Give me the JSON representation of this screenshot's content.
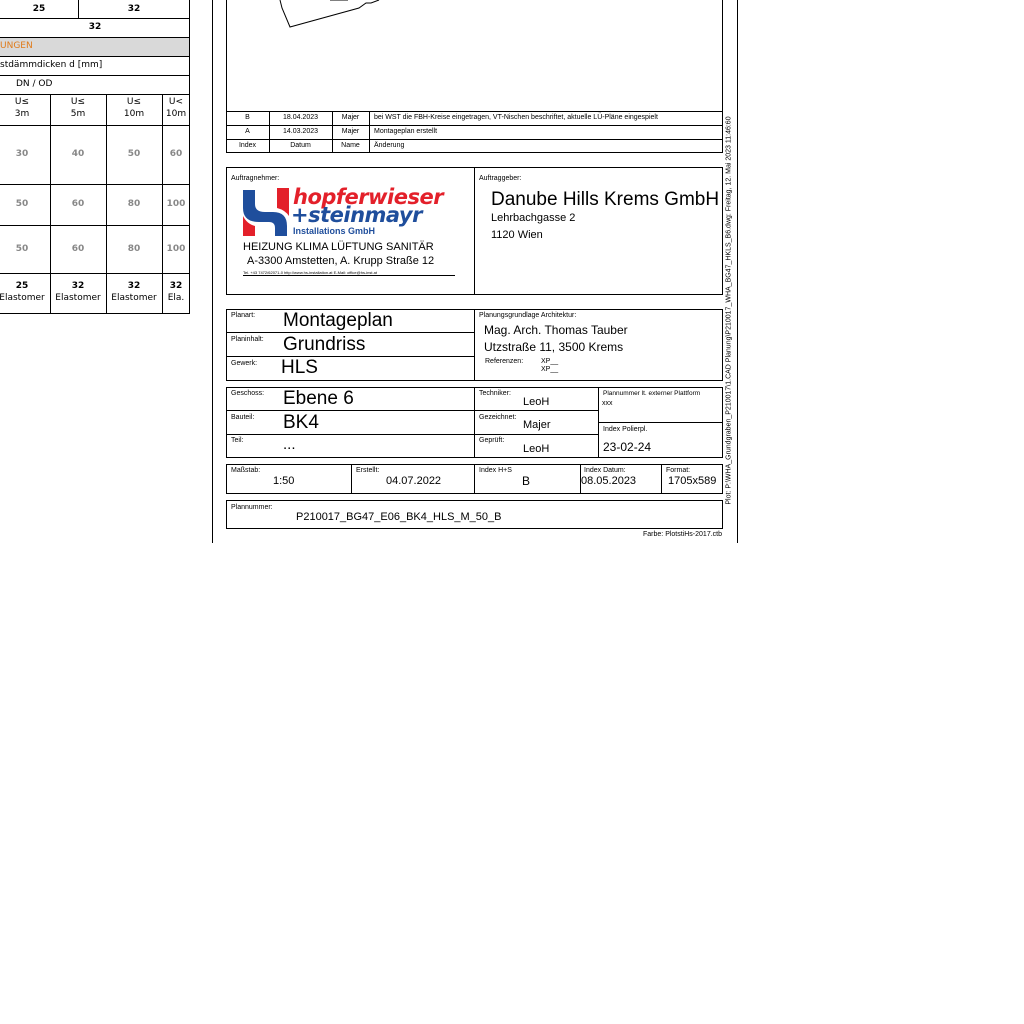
{
  "left_table": {
    "top_row": [
      "25",
      "32"
    ],
    "row2": "32",
    "section_header": "UNGEN",
    "section_color": "#e07b1a",
    "thickness_label": "stdämmdicken d [mm]",
    "dn_label": "DN / OD",
    "columns": [
      {
        "l1": "U≤",
        "l2": "3m"
      },
      {
        "l1": "U≤",
        "l2": "5m"
      },
      {
        "l1": "U≤",
        "l2": "10m"
      },
      {
        "l1": "U<",
        "l2": "10m"
      }
    ],
    "rows": [
      [
        "30",
        "40",
        "50",
        "60"
      ],
      [
        "50",
        "60",
        "80",
        "100"
      ],
      [
        "50",
        "60",
        "80",
        "100"
      ]
    ],
    "footer": [
      {
        "v": "25",
        "m": "Elastomer"
      },
      {
        "v": "32",
        "m": "Elastomer"
      },
      {
        "v": "32",
        "m": "Elastomer"
      },
      {
        "v": "32",
        "m": "Ela."
      }
    ]
  },
  "revisions": {
    "rows": [
      {
        "index": "B",
        "date": "18.04.2023",
        "name": "Majer",
        "change": "bei WST die FBH-Kreise eingetragen, VT-Nischen beschriftet, aktuelle LÜ-Pläne eingespielt"
      },
      {
        "index": "A",
        "date": "14.03.2023",
        "name": "Majer",
        "change": "Montageplan erstellt"
      }
    ],
    "header": {
      "index": "Index",
      "date": "Datum",
      "name": "Name",
      "change": "Änderung"
    }
  },
  "contractor": {
    "label": "Auftragnehmer:",
    "logo_line1": "hopferwieser",
    "logo_line2": "+steinmayr",
    "logo_line3": "Installations GmbH",
    "trades": "HEIZUNG KLIMA  LÜFTUNG SANITÄR",
    "address": "A-3300 Amstetten, A. Krupp Straße 12",
    "contact": "Tel. +43 7472/62071-0 http://www.hs-installation.at E-Mail: office@hs-inst.at",
    "red": "#e3202a",
    "blue": "#1f4e9c"
  },
  "client": {
    "label": "Auftraggeber:",
    "name": "Danube Hills Krems GmbH",
    "street": "Lehrbachgasse 2",
    "city": "1120 Wien"
  },
  "plan": {
    "planart_label": "Planart:",
    "planart": "Montageplan",
    "inhalt_label": "Planinhalt:",
    "inhalt": "Grundriss",
    "gewerk_label": "Gewerk:",
    "gewerk": "HLS",
    "arch_label": "Planungsgrundlage Architektur:",
    "arch_name": "Mag. Arch. Thomas Tauber",
    "arch_addr": "Utzstraße 11, 3500 Krems",
    "ref_label": "Referenzen:",
    "ref1": "XP__",
    "ref2": "XP__"
  },
  "location": {
    "geschoss_label": "Geschoss:",
    "geschoss": "Ebene 6",
    "bauteil_label": "Bauteil:",
    "bauteil": "BK4",
    "teil_label": "Teil:",
    "teil": "...",
    "techniker_label": "Techniker:",
    "techniker": "LeoH",
    "gezeichnet_label": "Gezeichnet:",
    "gezeichnet": "Majer",
    "geprueft_label": "Geprüft:",
    "geprueft": "LeoH",
    "ext_label": "Plannummer lt. externer Plattform",
    "ext": "xxx",
    "polier_label": "Index Polierpl.",
    "polier": "23-02-24"
  },
  "meta": {
    "massstab_label": "Maßstab:",
    "massstab": "1:50",
    "erstellt_label": "Erstellt:",
    "erstellt": "04.07.2022",
    "index_label": "Index H+S",
    "index": "B",
    "index_datum_label": "Index Datum:",
    "index_datum": "08.05.2023",
    "format_label": "Format:",
    "format": "1705x589"
  },
  "plannummer": {
    "label": "Plannummer:",
    "value": "P210017_BG47_E06_BK4_HLS_M_50_B"
  },
  "farbe": "Farbe: PlotstiHs-2017.ctb",
  "plot_stamp": "Plot: P:\\WHA_Grundgraben_P210017\\1.CAD Planung\\P210017_WHA_BG47_HKLS_B6.dwg: Freitag, 12. Mai 2023 11:46:60"
}
